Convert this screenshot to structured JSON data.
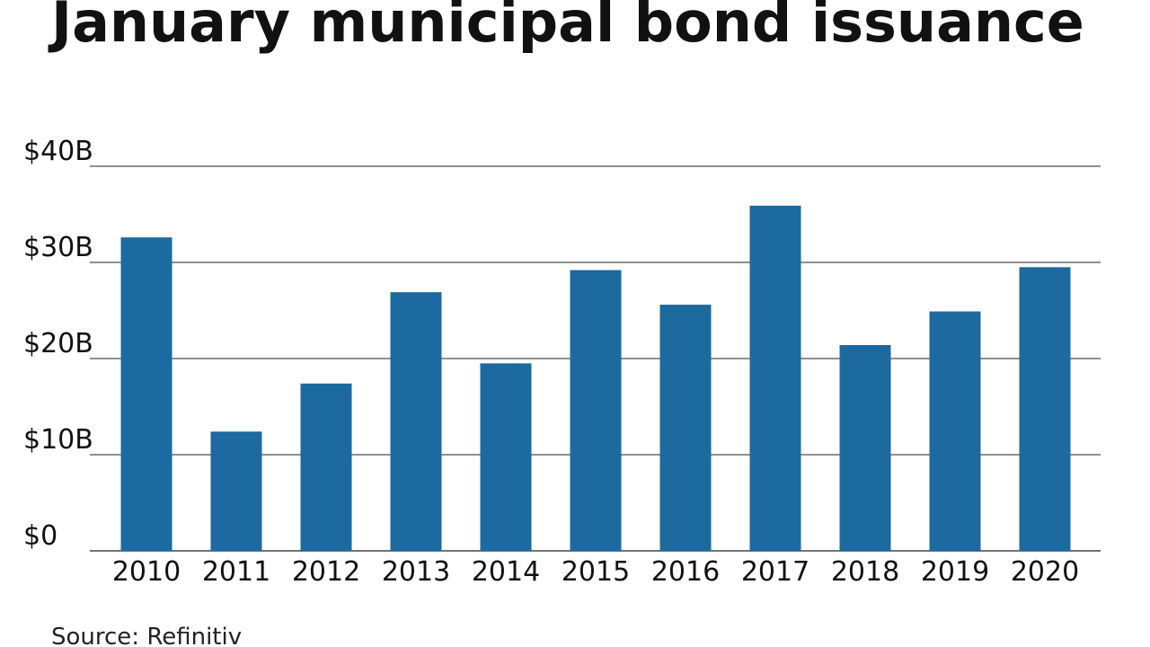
{
  "chart_data": {
    "type": "bar",
    "title": "January municipal bond issuance",
    "categories": [
      "2010",
      "2011",
      "2012",
      "2013",
      "2014",
      "2015",
      "2016",
      "2017",
      "2018",
      "2019",
      "2020"
    ],
    "values": [
      32.6,
      12.4,
      17.4,
      26.9,
      19.5,
      29.2,
      25.6,
      35.9,
      21.4,
      24.9,
      29.5
    ],
    "ylim": [
      0,
      40
    ],
    "yticks": [
      0,
      10,
      20,
      30,
      40
    ],
    "ytick_labels": [
      "$0",
      "$10B",
      "$20B",
      "$30B",
      "$40B"
    ],
    "xlabel": "",
    "ylabel": "",
    "grid": true,
    "bar_color": "#1c6aa0",
    "source": "Source: Refinitiv"
  }
}
